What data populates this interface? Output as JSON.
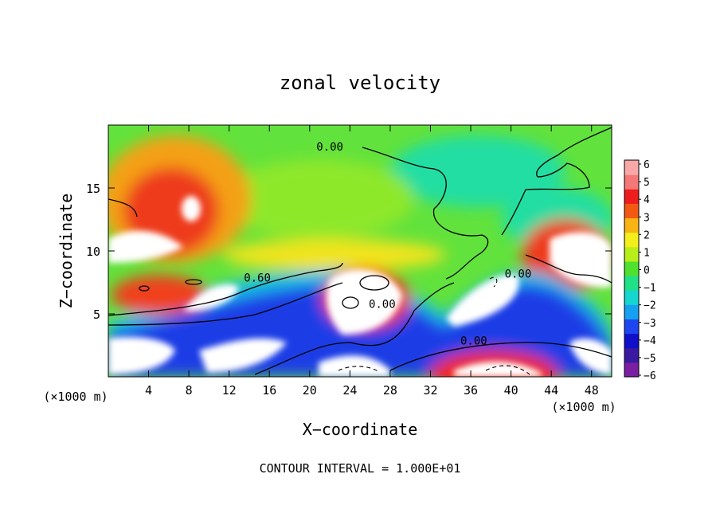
{
  "chart_data": {
    "type": "heatmap",
    "title": "zonal velocity",
    "xlabel": "X−coordinate",
    "ylabel": "Z−coordinate",
    "x_unit": "(×1000 m)",
    "z_unit": "(×1000 m)",
    "footer": "CONTOUR INTERVAL = 1.000E+01",
    "xlim": [
      0,
      50
    ],
    "ylim": [
      0,
      20
    ],
    "x_ticks": [
      "4",
      "8",
      "12",
      "16",
      "20",
      "24",
      "28",
      "32",
      "36",
      "40",
      "44",
      "48"
    ],
    "y_ticks": [
      "5",
      "10",
      "15"
    ],
    "colorbar": {
      "labels": [
        "6",
        "5",
        "4",
        "3",
        "2",
        "1",
        "0",
        "−1",
        "−2",
        "−3",
        "−4",
        "−5",
        "−6"
      ],
      "range": [
        -6,
        6
      ],
      "colors": [
        "#7a1fa2",
        "#3a1aa0",
        "#1010c8",
        "#1e46f0",
        "#16a0f0",
        "#16d6d0",
        "#20e088",
        "#50e030",
        "#b8ee1a",
        "#f4ee1c",
        "#f8b414",
        "#f25a14",
        "#ee1c1c",
        "#f47878",
        "#f9a8a8"
      ]
    },
    "contour_labels": [
      {
        "text": "0.00",
        "x": 22.0,
        "z": 18.1
      },
      {
        "text": "0.60",
        "x": 14.8,
        "z": 7.7
      },
      {
        "text": "0.00",
        "x": 27.2,
        "z": 5.6
      },
      {
        "text": "0.00",
        "x": 36.3,
        "z": 2.7
      },
      {
        "text": "0.00",
        "x": 40.7,
        "z": 8.0
      }
    ]
  }
}
